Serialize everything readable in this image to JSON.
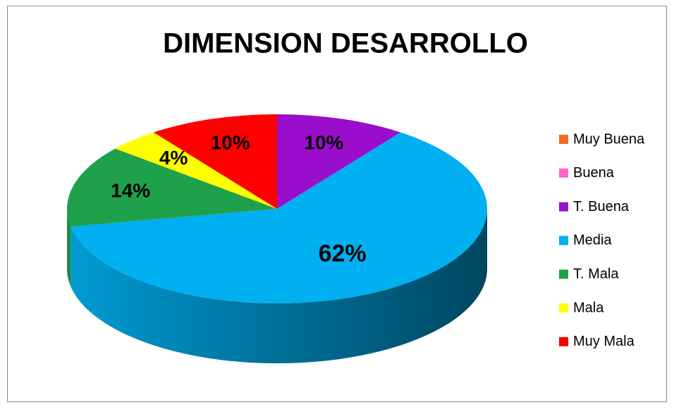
{
  "chart_data": {
    "type": "pie",
    "title": "DIMENSION DESARROLLO",
    "categories": [
      "Muy Buena",
      "Buena",
      "T. Buena",
      "Media",
      "T. Mala",
      "Mala",
      "Muy Mala"
    ],
    "values": [
      0,
      0,
      10,
      62,
      14,
      4,
      10
    ],
    "value_labels": [
      null,
      null,
      "10%",
      "62%",
      "14%",
      "4%",
      "10%"
    ],
    "colors": [
      "#f26b21",
      "#ff66cc",
      "#9a0dcc",
      "#00b0f0",
      "#1fa04a",
      "#ffff00",
      "#ff0000"
    ],
    "legend": "right"
  }
}
